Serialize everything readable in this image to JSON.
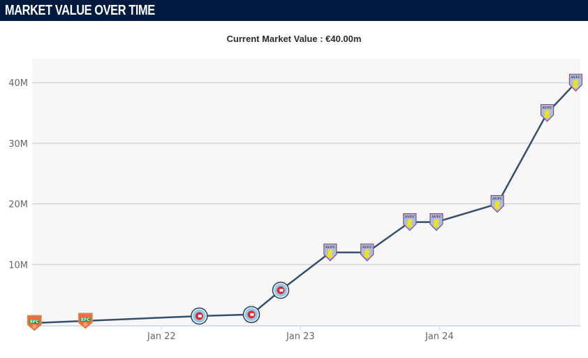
{
  "header": {
    "title": "MARKET VALUE OVER TIME",
    "background_color": "#001a40"
  },
  "subtitle": "Current Market Value : €40.00m",
  "chart_data": {
    "type": "line",
    "title": "Current Market Value : €40.00m",
    "xlabel": "",
    "ylabel": "",
    "x_type": "datetime",
    "xlim": [
      "2021-01-26",
      "2025-01-05"
    ],
    "ylim": [
      0,
      44
    ],
    "y_unit": "M",
    "y_ticks": [
      {
        "value": 10,
        "label": "10M"
      },
      {
        "value": 20,
        "label": "20M"
      },
      {
        "value": 30,
        "label": "30M"
      },
      {
        "value": 40,
        "label": "40M"
      }
    ],
    "x_ticks": [
      {
        "date": "2022-01-01",
        "label": "Jan 22"
      },
      {
        "date": "2023-01-01",
        "label": "Jan 23"
      },
      {
        "date": "2024-01-01",
        "label": "Jan 24"
      }
    ],
    "grid": "horizontal",
    "line_color": "#34506e",
    "plot_background": "#f7f7f8",
    "series": [
      {
        "name": "Market value",
        "points": [
          {
            "date": "2021-02-01",
            "value": 0.35,
            "club": "EFC"
          },
          {
            "date": "2021-06-15",
            "value": 0.7,
            "club": "EFC"
          },
          {
            "date": "2022-04-10",
            "value": 1.5,
            "club": "Chicago Fire"
          },
          {
            "date": "2022-08-25",
            "value": 1.75,
            "club": "Chicago Fire"
          },
          {
            "date": "2022-11-10",
            "value": 5.75,
            "club": "Chicago Fire"
          },
          {
            "date": "2023-03-20",
            "value": 12,
            "club": "AVFC"
          },
          {
            "date": "2023-06-25",
            "value": 12,
            "club": "AVFC"
          },
          {
            "date": "2023-10-15",
            "value": 17,
            "club": "AVFC"
          },
          {
            "date": "2023-12-24",
            "value": 17,
            "club": "AVFC"
          },
          {
            "date": "2024-06-01",
            "value": 20,
            "club": "AVFC"
          },
          {
            "date": "2024-10-10",
            "value": 35,
            "club": "AVFC"
          },
          {
            "date": "2024-12-24",
            "value": 40,
            "club": "AVFC"
          }
        ]
      }
    ],
    "legend": "none"
  }
}
